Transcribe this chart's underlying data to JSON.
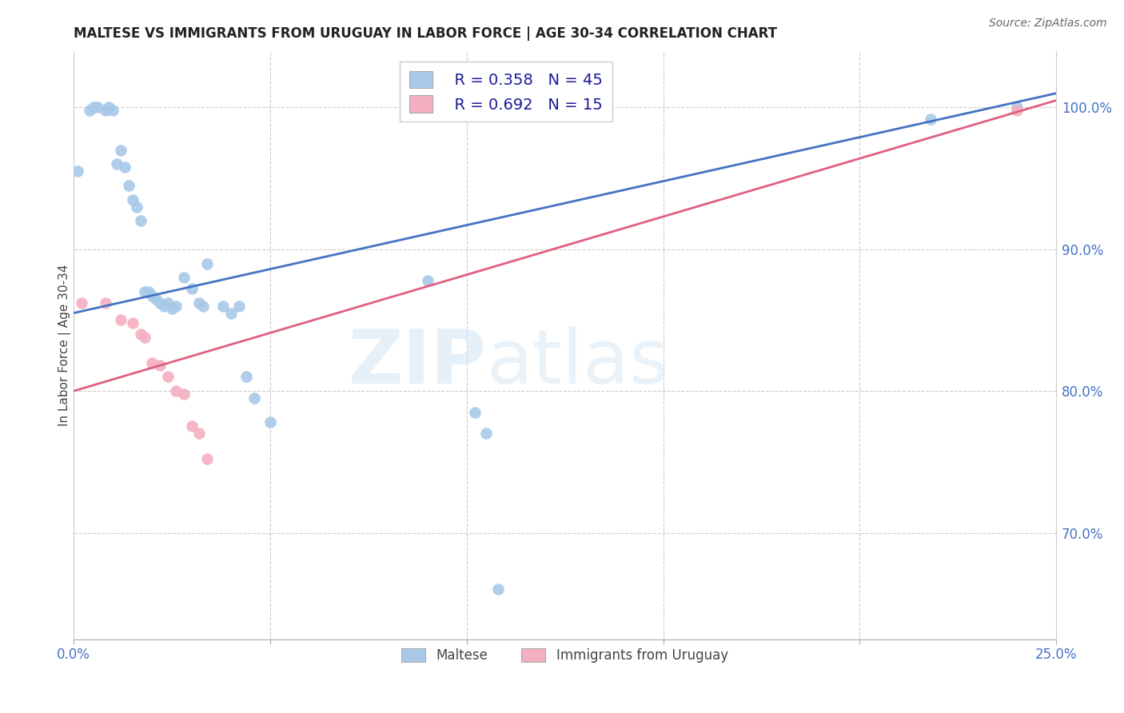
{
  "title": "MALTESE VS IMMIGRANTS FROM URUGUAY IN LABOR FORCE | AGE 30-34 CORRELATION CHART",
  "source": "Source: ZipAtlas.com",
  "ylabel": "In Labor Force | Age 30-34",
  "xlim": [
    0.0,
    0.25
  ],
  "ylim": [
    0.625,
    1.04
  ],
  "xticks": [
    0.0,
    0.05,
    0.1,
    0.15,
    0.2,
    0.25
  ],
  "xticklabels": [
    "0.0%",
    "",
    "",
    "",
    "",
    "25.0%"
  ],
  "yticks": [
    0.7,
    0.8,
    0.9,
    1.0
  ],
  "yticklabels": [
    "70.0%",
    "80.0%",
    "90.0%",
    "100.0%"
  ],
  "blue_color": "#a8c8e8",
  "pink_color": "#f4afc0",
  "blue_line_color": "#4472c4",
  "pink_line_color": "#e06080",
  "legend_R_blue": "R = 0.358",
  "legend_N_blue": "N = 45",
  "legend_R_pink": "R = 0.692",
  "legend_N_pink": "N = 15",
  "legend_label_blue": "Maltese",
  "legend_label_pink": "Immigrants from Uruguay",
  "blue_line_x0": 0.0,
  "blue_line_y0": 0.855,
  "blue_line_x1": 0.25,
  "blue_line_y1": 1.01,
  "pink_line_x0": 0.0,
  "pink_line_y0": 0.8,
  "pink_line_x1": 0.25,
  "pink_line_y1": 1.005,
  "blue_x": [
    0.001,
    0.004,
    0.005,
    0.006,
    0.008,
    0.009,
    0.01,
    0.011,
    0.012,
    0.013,
    0.014,
    0.015,
    0.016,
    0.017,
    0.018,
    0.019,
    0.02,
    0.021,
    0.022,
    0.023,
    0.024,
    0.025,
    0.026,
    0.028,
    0.03,
    0.032,
    0.033,
    0.034,
    0.038,
    0.04,
    0.042,
    0.044,
    0.046,
    0.05,
    0.09,
    0.092,
    0.094,
    0.095,
    0.097,
    0.1,
    0.102,
    0.105,
    0.108,
    0.218,
    0.24
  ],
  "blue_y": [
    0.955,
    0.998,
    1.0,
    1.0,
    0.998,
    1.0,
    0.998,
    0.96,
    0.97,
    0.958,
    0.945,
    0.935,
    0.93,
    0.92,
    0.87,
    0.87,
    0.867,
    0.865,
    0.862,
    0.86,
    0.862,
    0.858,
    0.86,
    0.88,
    0.872,
    0.862,
    0.86,
    0.89,
    0.86,
    0.855,
    0.86,
    0.81,
    0.795,
    0.778,
    0.878,
    0.998,
    1.0,
    0.998,
    1.0,
    1.0,
    0.785,
    0.77,
    0.66,
    0.992,
    1.0
  ],
  "pink_x": [
    0.002,
    0.008,
    0.012,
    0.015,
    0.017,
    0.018,
    0.02,
    0.022,
    0.024,
    0.026,
    0.028,
    0.03,
    0.032,
    0.034,
    0.24
  ],
  "pink_y": [
    0.862,
    0.862,
    0.85,
    0.848,
    0.84,
    0.838,
    0.82,
    0.818,
    0.81,
    0.8,
    0.798,
    0.775,
    0.77,
    0.752,
    0.998
  ]
}
